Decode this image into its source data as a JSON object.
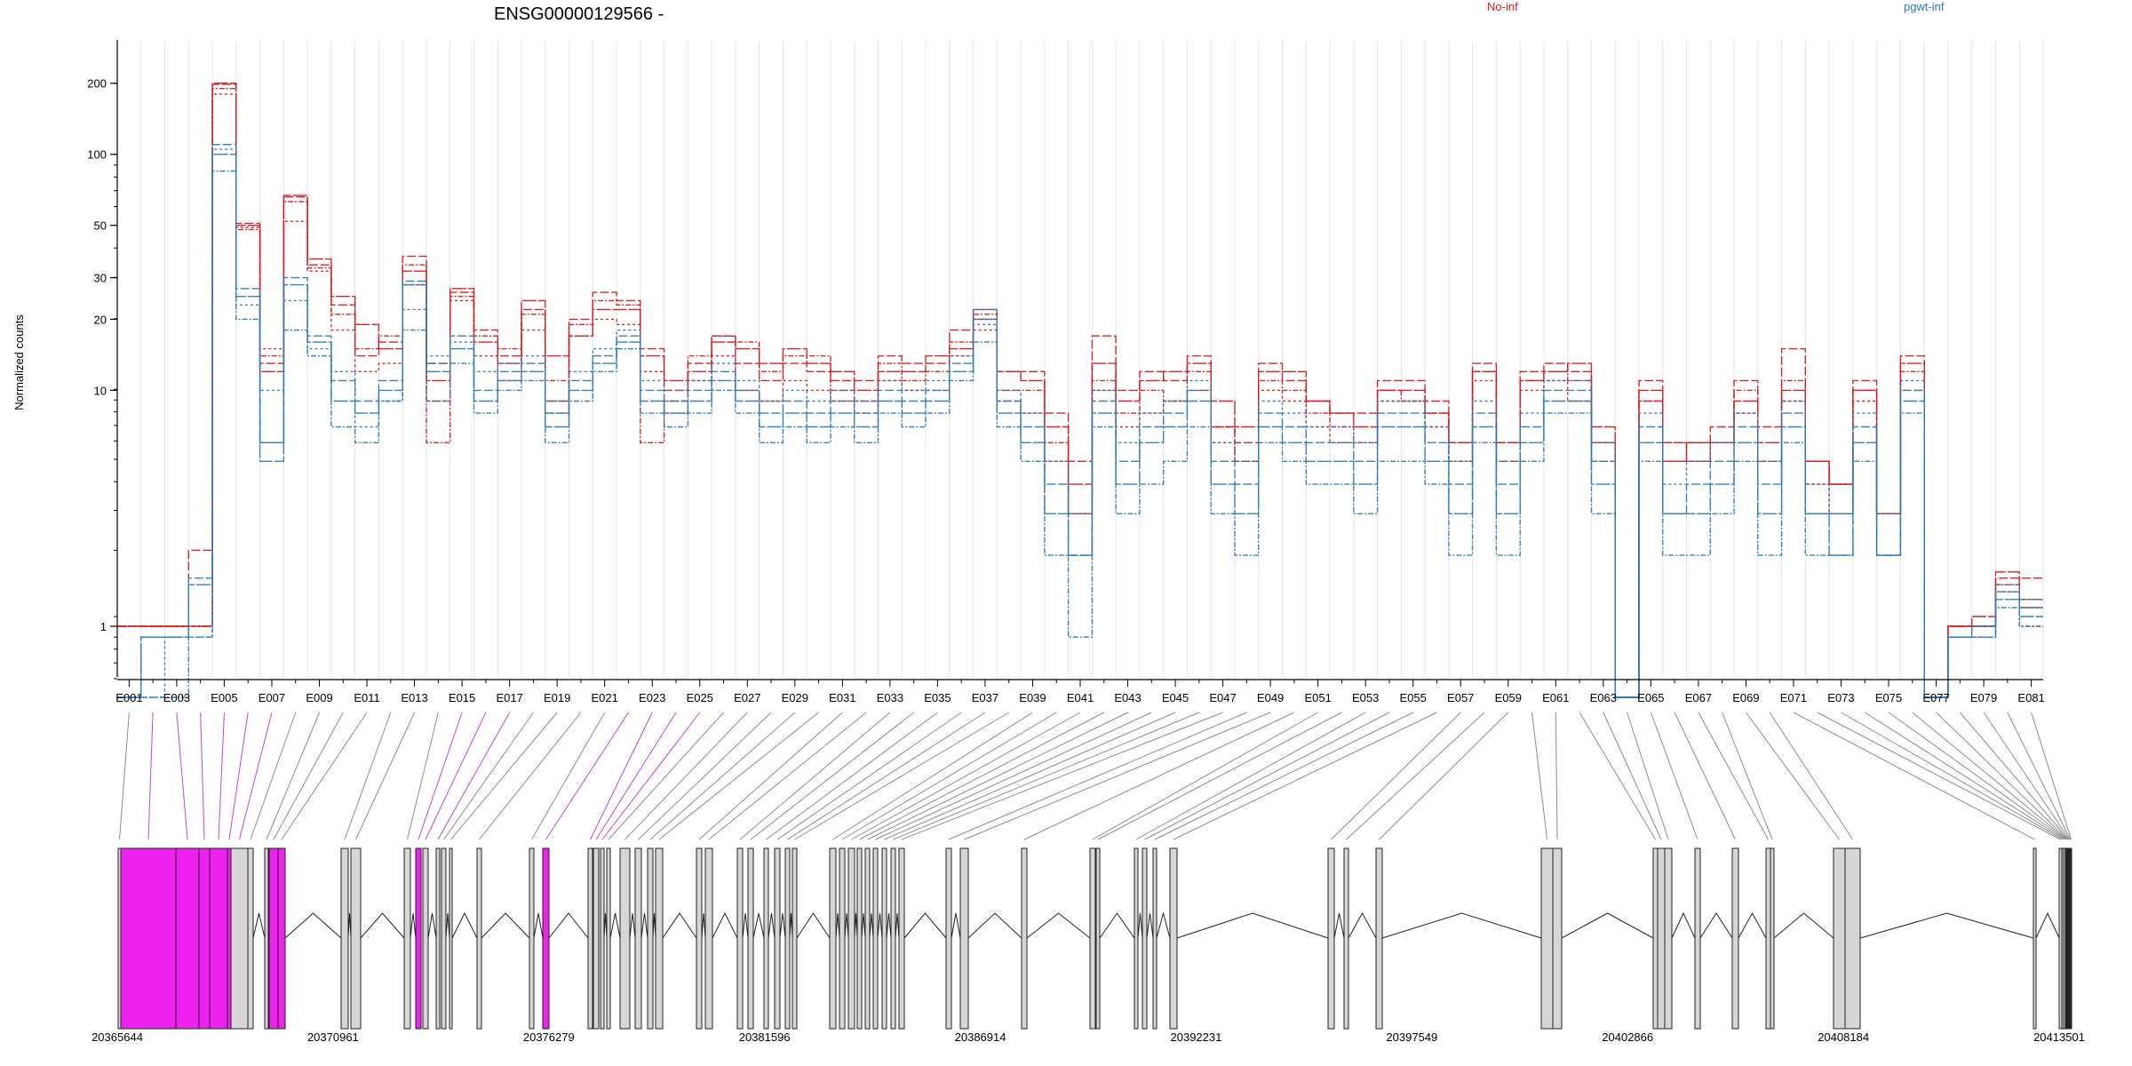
{
  "chart_data": {
    "type": "line",
    "title": "ENSG00000129566 -",
    "ylabel": "Normalized counts",
    "xlabel": "",
    "y_scale": "log",
    "ylim": [
      0.5,
      250
    ],
    "y_ticks": [
      1,
      10,
      20,
      30,
      50,
      100,
      200
    ],
    "legend": [
      {
        "name": "No-inf",
        "color": "#d7191c"
      },
      {
        "name": "pgwt-inf",
        "color": "#2b7bba"
      }
    ],
    "exon_labels": [
      "E001",
      "E003",
      "E005",
      "E007",
      "E009",
      "E011",
      "E013",
      "E015",
      "E017",
      "E019",
      "E021",
      "E023",
      "E025",
      "E027",
      "E029",
      "E031",
      "E033",
      "E035",
      "E037",
      "E039",
      "E041",
      "E043",
      "E045",
      "E047",
      "E049",
      "E051",
      "E053",
      "E055",
      "E057",
      "E059",
      "E061",
      "E063",
      "E065",
      "E067",
      "E069",
      "E071",
      "E073",
      "E075",
      "E077",
      "E079",
      "E081"
    ],
    "n_exons": 81,
    "series_groups": [
      {
        "group": "No-inf",
        "color": "#d7191c",
        "series": [
          {
            "values": [
              1,
              1,
              1,
              2.1,
              198,
              51,
              13,
              66,
              34,
              23,
              14,
              16,
              37,
              13,
              26,
              18,
              14,
              22,
              9,
              20,
              26,
              24,
              15,
              10,
              13,
              17,
              13,
              11,
              13,
              12,
              11,
              11,
              14,
              13,
              13,
              18,
              22,
              12,
              12,
              8,
              5,
              17,
              10,
              12,
              11,
              14,
              7,
              6,
              13,
              11,
              9,
              8,
              8,
              11,
              11,
              9,
              6,
              13,
              6,
              12,
              13,
              12,
              6,
              0.5,
              11,
              6,
              6,
              7,
              11,
              7,
              15,
              5,
              4,
              11,
              3,
              14,
              0.5,
              1,
              1,
              1.6,
              1.6
            ]
          },
          {
            "values": [
              1,
              1,
              1,
              1,
              200,
              50,
              12,
              67,
              36,
              25,
              19,
              15,
              32,
              11,
              27,
              16,
              13,
              24,
              14,
              17,
              22,
              22,
              14,
              11,
              12,
              16,
              15,
              13,
              15,
              13,
              12,
              10,
              12,
              12,
              14,
              15,
              20,
              12,
              11,
              7,
              4,
              13,
              9,
              11,
              12,
              13,
              9,
              7,
              12,
              12,
              9,
              8,
              7,
              10,
              10,
              8,
              6,
              12,
              6,
              11,
              12,
              13,
              7,
              0.5,
              10,
              5,
              6,
              6,
              9,
              6,
              10,
              5,
              4,
              10,
              3,
              13,
              0.5,
              1,
              1.1,
              1.7,
              1.3
            ]
          },
          {
            "values": [
              1,
              1,
              1,
              1,
              180,
              49,
              15,
              52,
              32,
              18,
              12,
              13,
              28,
              9,
              24,
              14,
              11,
              18,
              8,
              17,
              20,
              19,
              12,
              8,
              11,
              14,
              10,
              9,
              11,
              10,
              9,
              8,
              11,
              10,
              10,
              14,
              18,
              9,
              8,
              5,
              3,
              10,
              7,
              8,
              9,
              10,
              6,
              5,
              10,
              9,
              7,
              6,
              6,
              9,
              9,
              7,
              5,
              11,
              5,
              10,
              11,
              9,
              5,
              0.5,
              9,
              5,
              5,
              6,
              8,
              5,
              9,
              4,
              3,
              9,
              3,
              10,
              0.5,
              1,
              1,
              1.4,
              1
            ]
          },
          {
            "values": [
              1,
              1,
              1,
              1,
              190,
              48,
              14,
              63,
              33,
              21,
              15,
              17,
              34,
              6,
              25,
              17,
              15,
              21,
              11,
              19,
              24,
              23,
              6,
              9,
              14,
              17,
              16,
              12,
              14,
              14,
              10,
              9,
              13,
              11,
              12,
              16,
              21,
              10,
              10,
              6,
              3,
              11,
              8,
              10,
              9,
              12,
              7,
              5,
              11,
              10,
              8,
              7,
              6,
              10,
              9,
              8,
              5,
              12,
              5,
              11,
              12,
              11,
              6,
              0.5,
              9,
              6,
              5,
              6,
              10,
              5,
              11,
              5,
              4,
              10,
              3,
              12,
              0.5,
              1,
              1,
              1.5,
              1.2
            ]
          }
        ]
      },
      {
        "group": "pgwt-inf",
        "color": "#2b7bba",
        "series": [
          {
            "values": [
              0.5,
              0.9,
              0.9,
              1.6,
              110,
              27,
              6,
              30,
              17,
              11,
              9,
              11,
              29,
              13,
              17,
              10,
              12,
              13,
              8,
              11,
              14,
              17,
              10,
              9,
              10,
              12,
              10,
              8,
              9,
              8,
              9,
              8,
              10,
              9,
              10,
              13,
              22,
              9,
              7,
              4,
              2,
              9,
              5,
              7,
              8,
              10,
              5,
              4,
              8,
              7,
              6,
              6,
              5,
              8,
              8,
              6,
              4,
              8,
              4,
              7,
              10,
              10,
              5,
              0.5,
              7,
              3,
              4,
              5,
              7,
              4,
              8,
              3,
              3,
              7,
              2,
              10,
              0.5,
              0.9,
              1,
              1.4,
              1.2
            ]
          },
          {
            "values": [
              0.5,
              0.9,
              0.9,
              1.5,
              100,
              25,
              5,
              28,
              16,
              9,
              8,
              10,
              28,
              12,
              15,
              9,
              11,
              12,
              7,
              10,
              13,
              16,
              9,
              8,
              9,
              11,
              9,
              7,
              8,
              7,
              8,
              7,
              9,
              8,
              9,
              12,
              20,
              8,
              6,
              3,
              2,
              8,
              4,
              6,
              7,
              9,
              4,
              3,
              7,
              6,
              5,
              5,
              4,
              7,
              7,
              5,
              3,
              7,
              3,
              6,
              9,
              9,
              4,
              0.5,
              6,
              3,
              3,
              4,
              6,
              3,
              7,
              3,
              2,
              6,
              2,
              9,
              0.5,
              0.9,
              0.9,
              1.3,
              1.1
            ]
          },
          {
            "values": [
              0.5,
              0.5,
              0.9,
              0.9,
              105,
              23,
              10,
              24,
              15,
              12,
              7,
              9,
              22,
              14,
              16,
              12,
              13,
              14,
              9,
              12,
              15,
              18,
              11,
              10,
              11,
              13,
              11,
              9,
              10,
              9,
              10,
              9,
              11,
              10,
              11,
              14,
              19,
              10,
              8,
              5,
              3,
              10,
              6,
              8,
              9,
              11,
              6,
              5,
              9,
              8,
              7,
              7,
              6,
              9,
              9,
              7,
              5,
              9,
              5,
              8,
              11,
              11,
              6,
              0.5,
              8,
              4,
              5,
              6,
              8,
              5,
              9,
              4,
              3,
              8,
              3,
              11,
              0.5,
              0.9,
              1,
              1.5,
              1.3
            ]
          },
          {
            "values": [
              0.5,
              0.5,
              0.5,
              0.9,
              85,
              20,
              6,
              18,
              14,
              7,
              6,
              9,
              18,
              9,
              13,
              8,
              10,
              11,
              6,
              9,
              12,
              15,
              8,
              7,
              8,
              10,
              8,
              6,
              7,
              6,
              7,
              6,
              8,
              7,
              8,
              11,
              16,
              7,
              5,
              2,
              0.9,
              7,
              3,
              4,
              5,
              7,
              3,
              2,
              6,
              5,
              4,
              4,
              3,
              5,
              5,
              4,
              2,
              6,
              2,
              5,
              8,
              8,
              3,
              0.5,
              5,
              2,
              2,
              3,
              5,
              2,
              6,
              2,
              2,
              5,
              2,
              8,
              0.5,
              0.9,
              0.9,
              1.2,
              1
            ]
          }
        ]
      }
    ],
    "genomic_coordinates": [
      20365644,
      20370961,
      20376279,
      20381596,
      20386914,
      20392231,
      20397549,
      20402866,
      20408184,
      20413501
    ],
    "highlighted_exons": [
      3,
      4,
      5,
      6,
      15,
      22
    ]
  }
}
